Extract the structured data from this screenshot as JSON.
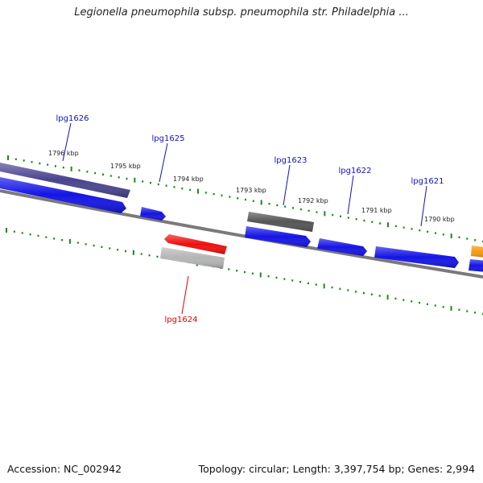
{
  "header": {
    "title": "Legionella pneumophila subsp. pneumophila str. Philadelphia ..."
  },
  "footer": {
    "accession": "Accession: NC_002942",
    "topology": "Topology: circular; Length: 3,397,754 bp; Genes: 2,994"
  },
  "colors": {
    "tick": "#1a8a1a",
    "backbone": "#7a7a7a",
    "label_default": "#1010c0",
    "label_highlight": "#e00000"
  },
  "kbp_labels": [
    "1796 kbp",
    "1795 kbp",
    "1794 kbp",
    "1793 kbp",
    "1792 kbp",
    "1791 kbp",
    "1790 kbp"
  ],
  "gene_labels": [
    {
      "name": "lpg1626",
      "color": "#1010c0"
    },
    {
      "name": "lpg1625",
      "color": "#1010c0"
    },
    {
      "name": "lpg1623",
      "color": "#1010c0"
    },
    {
      "name": "lpg1622",
      "color": "#1010c0"
    },
    {
      "name": "lpg1621",
      "color": "#1010c0"
    },
    {
      "name": "lpg1624",
      "color": "#e00000"
    }
  ],
  "features": [
    {
      "name": "dark-purple-feature",
      "color": "#4a4490"
    },
    {
      "name": "blue-gene-1",
      "color": "#1414e6"
    },
    {
      "name": "blue-gene-2",
      "color": "#1414e6"
    },
    {
      "name": "dark-gray-feature",
      "color": "#555555"
    },
    {
      "name": "blue-gene-3",
      "color": "#1414e6"
    },
    {
      "name": "blue-gene-4",
      "color": "#1414e6"
    },
    {
      "name": "blue-gene-5",
      "color": "#1414e6"
    },
    {
      "name": "orange-feature",
      "color": "#f59a10"
    },
    {
      "name": "blue-gene-6",
      "color": "#1414e6"
    },
    {
      "name": "red-gene-lpg1624",
      "color": "#ee1010"
    },
    {
      "name": "light-gray-feature",
      "color": "#b5b5b5"
    }
  ]
}
